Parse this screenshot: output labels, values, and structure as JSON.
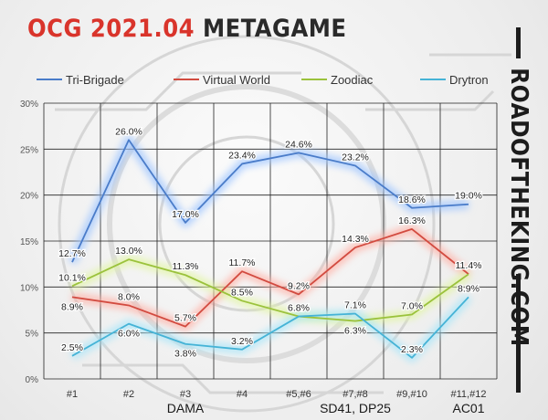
{
  "title": {
    "accent": "OCG 2021.04",
    "rest": "METAGAME"
  },
  "brand": "ROADOFTHEKING.COM",
  "colors": {
    "accent": "#d9342b",
    "background": "#f0f0f0",
    "grid": "#222222"
  },
  "chart_data": {
    "type": "line",
    "categories": [
      "#1",
      "#2",
      "#3",
      "#4",
      "#5,#6",
      "#7,#8",
      "#9,#10",
      "#11,#12"
    ],
    "category_sublabels": [
      "",
      "",
      "DAMA",
      "",
      "",
      "SD41, DP25",
      "",
      "AC01"
    ],
    "ylim": [
      0,
      30
    ],
    "yticks": [
      "0%",
      "5%",
      "10%",
      "15%",
      "20%",
      "25%",
      "30%"
    ],
    "grid": true,
    "legend_position": "top",
    "series": [
      {
        "name": "Tri-Brigade",
        "color": "#4a7cc9",
        "glow": "#9cc4ff",
        "values": [
          12.7,
          26.0,
          17.0,
          23.4,
          24.6,
          23.2,
          18.6,
          19.0
        ],
        "labels": [
          "12.7%",
          "26.0%",
          "17.0%",
          "23.4%",
          "24.6%",
          "23.2%",
          "18.6%",
          "19.0%"
        ]
      },
      {
        "name": "Virtual World",
        "color": "#d24b40",
        "glow": "#ffb0a6",
        "values": [
          8.9,
          8.0,
          5.7,
          11.7,
          9.2,
          14.3,
          16.3,
          11.4
        ],
        "labels": [
          "8.9%",
          "8.0%",
          "5.7%",
          "11.7%",
          "9.2%",
          "14.3%",
          "16.3%",
          "11.4%"
        ]
      },
      {
        "name": "Zoodiac",
        "color": "#9bc23c",
        "glow": "#e0f5a0",
        "values": [
          10.1,
          13.0,
          11.3,
          8.5,
          6.8,
          6.3,
          7.0,
          11.4
        ],
        "labels": [
          "10.1%",
          "13.0%",
          "11.3%",
          "8.5%",
          "6.8%",
          "6.3%",
          "7.0%",
          "11.4%"
        ]
      },
      {
        "name": "Drytron",
        "color": "#45b3d6",
        "glow": "#a8e6fa",
        "values": [
          2.5,
          6.0,
          3.8,
          3.2,
          6.8,
          7.1,
          2.3,
          8.9
        ],
        "labels": [
          "2.5%",
          "6.0%",
          "3.8%",
          "3.2%",
          "6.8%",
          "7.1%",
          "2.3%",
          "8.9%"
        ]
      }
    ]
  }
}
